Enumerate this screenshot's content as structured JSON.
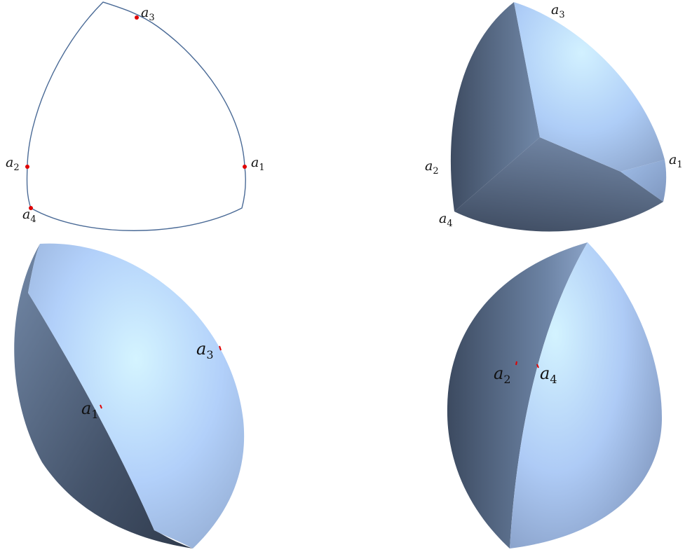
{
  "panels": [
    {
      "id": "outline",
      "labels": [
        {
          "base": "a",
          "sub": "3"
        },
        {
          "base": "a",
          "sub": "2"
        },
        {
          "base": "a",
          "sub": "1"
        },
        {
          "base": "a",
          "sub": "4"
        }
      ]
    },
    {
      "id": "solid-top",
      "labels": [
        {
          "base": "a",
          "sub": "3"
        },
        {
          "base": "a",
          "sub": "2"
        },
        {
          "base": "a",
          "sub": "1"
        },
        {
          "base": "a",
          "sub": "4"
        }
      ]
    },
    {
      "id": "lens-left",
      "labels": [
        {
          "base": "a",
          "sub": "3"
        },
        {
          "base": "a",
          "sub": "1"
        }
      ]
    },
    {
      "id": "lens-right",
      "labels": [
        {
          "base": "a",
          "sub": "2"
        },
        {
          "base": "a",
          "sub": "4"
        }
      ]
    }
  ],
  "colors": {
    "outline": "#4a6a96",
    "point": "#e00000",
    "light": "#cfefff",
    "mid": "#a9c8f5",
    "dark": "#3a4a60"
  }
}
